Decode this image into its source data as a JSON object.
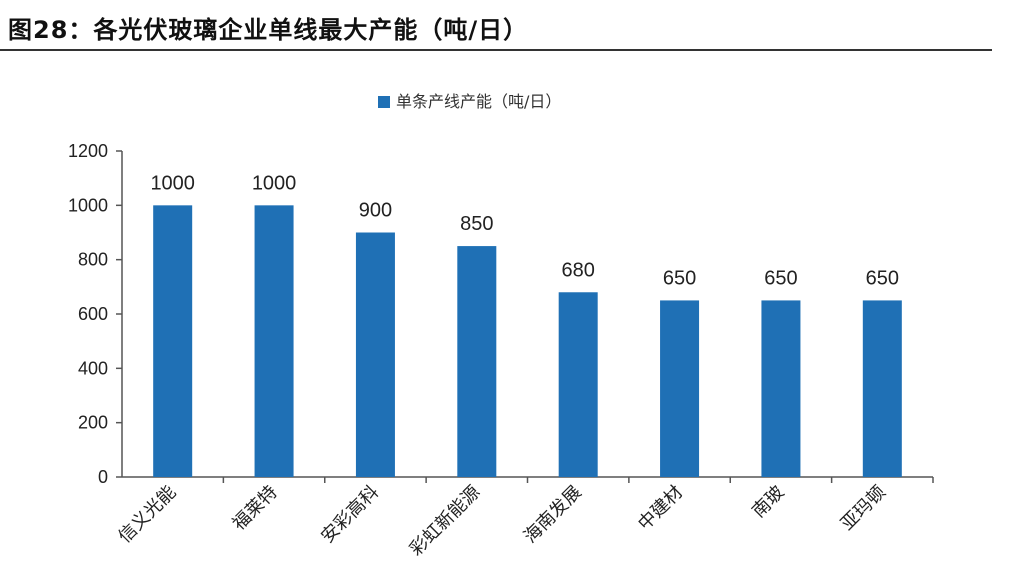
{
  "figure": {
    "title": "图28：各光伏玻璃企业单线最大产能（吨/日）"
  },
  "chart_data": {
    "type": "bar",
    "categories": [
      "信义光能",
      "福莱特",
      "安彩高科",
      "彩虹新能源",
      "海南发展",
      "中建材",
      "南玻",
      "亚玛顿"
    ],
    "series": [
      {
        "name": "单条产线产能（吨/日）",
        "values": [
          1000,
          1000,
          900,
          850,
          680,
          650,
          650,
          650
        ],
        "color": "#1F70B5"
      }
    ],
    "data_labels": [
      "1000",
      "1000",
      "900",
      "850",
      "680",
      "650",
      "650",
      "650"
    ],
    "ylim": [
      0,
      1200
    ],
    "yticks": [
      0,
      200,
      400,
      600,
      800,
      1000,
      1200
    ],
    "ytick_labels": [
      "0",
      "200",
      "400",
      "600",
      "800",
      "1000",
      "1200"
    ],
    "grid": false,
    "legend_position": "top-center"
  }
}
